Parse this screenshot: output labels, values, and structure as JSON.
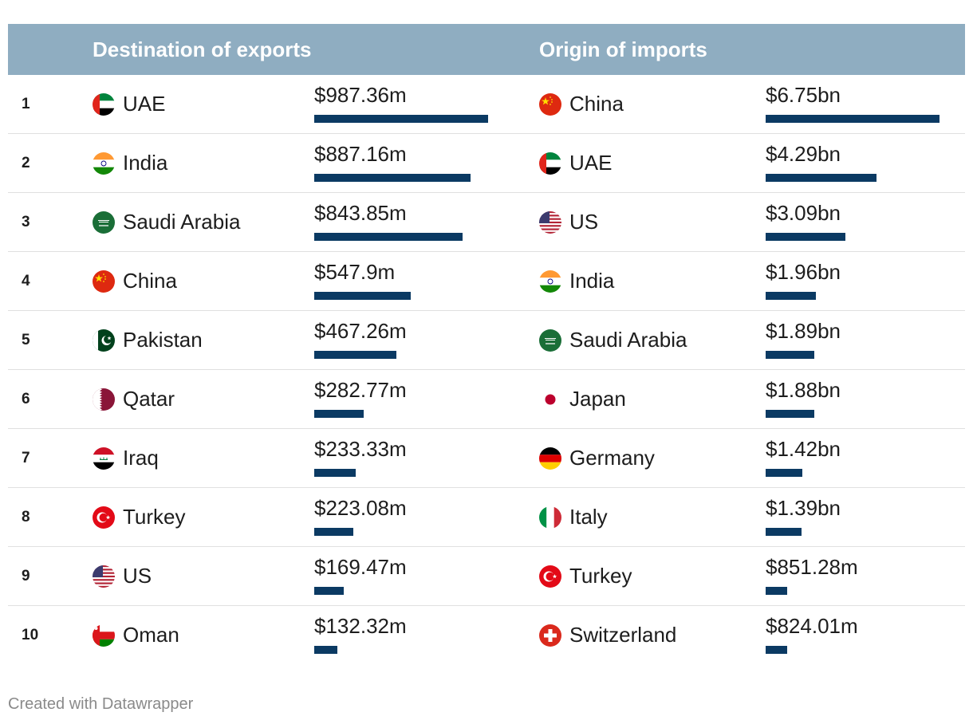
{
  "chart_data": {
    "type": "table",
    "headers": {
      "exports": "Destination of exports",
      "imports": "Origin of imports"
    },
    "exports_max": 987.36,
    "imports_max": 6.75,
    "rows": [
      {
        "rank": "1",
        "exp_country": "UAE",
        "exp_flag": "uae-flag-icon",
        "exp_value": 987.36,
        "exp_label": "$987.36m",
        "imp_country": "China",
        "imp_flag": "china-flag-icon",
        "imp_value": 6.75,
        "imp_label": "$6.75bn"
      },
      {
        "rank": "2",
        "exp_country": "India",
        "exp_flag": "india-flag-icon",
        "exp_value": 887.16,
        "exp_label": "$887.16m",
        "imp_country": "UAE",
        "imp_flag": "uae-flag-icon",
        "imp_value": 4.29,
        "imp_label": "$4.29bn"
      },
      {
        "rank": "3",
        "exp_country": "Saudi Arabia",
        "exp_flag": "saudi-arabia-flag-icon",
        "exp_value": 843.85,
        "exp_label": "$843.85m",
        "imp_country": "US",
        "imp_flag": "us-flag-icon",
        "imp_value": 3.09,
        "imp_label": "$3.09bn"
      },
      {
        "rank": "4",
        "exp_country": "China",
        "exp_flag": "china-flag-icon",
        "exp_value": 547.9,
        "exp_label": "$547.9m",
        "imp_country": "India",
        "imp_flag": "india-flag-icon",
        "imp_value": 1.96,
        "imp_label": "$1.96bn"
      },
      {
        "rank": "5",
        "exp_country": "Pakistan",
        "exp_flag": "pakistan-flag-icon",
        "exp_value": 467.26,
        "exp_label": "$467.26m",
        "imp_country": "Saudi Arabia",
        "imp_flag": "saudi-arabia-flag-icon",
        "imp_value": 1.89,
        "imp_label": "$1.89bn"
      },
      {
        "rank": "6",
        "exp_country": "Qatar",
        "exp_flag": "qatar-flag-icon",
        "exp_value": 282.77,
        "exp_label": "$282.77m",
        "imp_country": "Japan",
        "imp_flag": "japan-flag-icon",
        "imp_value": 1.88,
        "imp_label": "$1.88bn"
      },
      {
        "rank": "7",
        "exp_country": "Iraq",
        "exp_flag": "iraq-flag-icon",
        "exp_value": 233.33,
        "exp_label": "$233.33m",
        "imp_country": "Germany",
        "imp_flag": "germany-flag-icon",
        "imp_value": 1.42,
        "imp_label": "$1.42bn"
      },
      {
        "rank": "8",
        "exp_country": "Turkey",
        "exp_flag": "turkey-flag-icon",
        "exp_value": 223.08,
        "exp_label": "$223.08m",
        "imp_country": "Italy",
        "imp_flag": "italy-flag-icon",
        "imp_value": 1.39,
        "imp_label": "$1.39bn"
      },
      {
        "rank": "9",
        "exp_country": "US",
        "exp_flag": "us-flag-icon",
        "exp_value": 169.47,
        "exp_label": "$169.47m",
        "imp_country": "Turkey",
        "imp_flag": "turkey-flag-icon",
        "imp_value": 0.85128,
        "imp_label": "$851.28m"
      },
      {
        "rank": "10",
        "exp_country": "Oman",
        "exp_flag": "oman-flag-icon",
        "exp_value": 132.32,
        "exp_label": "$132.32m",
        "imp_country": "Switzerland",
        "imp_flag": "switzerland-flag-icon",
        "imp_value": 0.82401,
        "imp_label": "$824.01m"
      }
    ],
    "colors": {
      "header_bg": "#8fadc1",
      "bar": "#0b3a63"
    }
  },
  "footer": "Created with Datawrapper"
}
